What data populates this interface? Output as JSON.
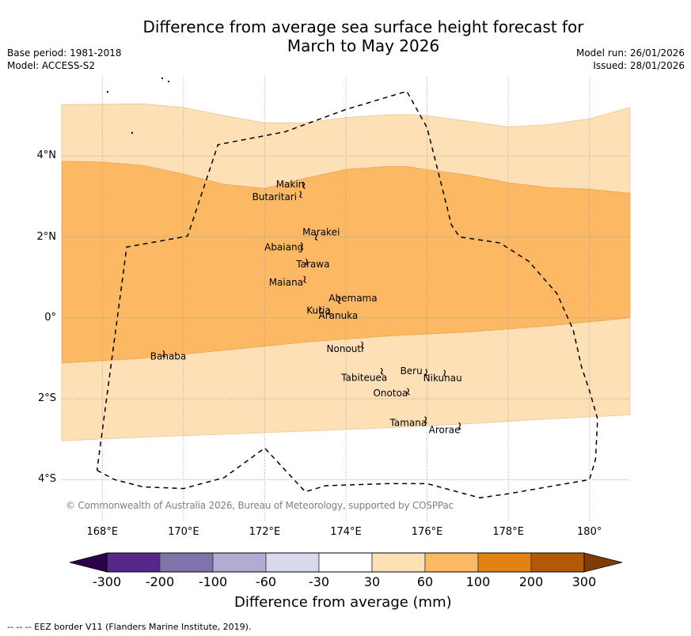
{
  "title_line1": "Difference from average sea surface height forecast for",
  "title_line2": "March to May 2026",
  "meta_left": {
    "base_period": "Base period: 1981-2018",
    "model": "Model: ACCESS-S2"
  },
  "meta_right": {
    "model_run": "Model run: 26/01/2026",
    "issued": "Issued: 28/01/2026"
  },
  "axes": {
    "lat_ticks": [
      {
        "value": 4,
        "label": "4°N"
      },
      {
        "value": 2,
        "label": "2°N"
      },
      {
        "value": 0,
        "label": "0°"
      },
      {
        "value": -2,
        "label": "2°S"
      },
      {
        "value": -4,
        "label": "4°S"
      }
    ],
    "lon_ticks": [
      {
        "value": 168,
        "label": "168°E"
      },
      {
        "value": 170,
        "label": "170°E"
      },
      {
        "value": 172,
        "label": "172°E"
      },
      {
        "value": 174,
        "label": "174°E"
      },
      {
        "value": 176,
        "label": "176°E"
      },
      {
        "value": 178,
        "label": "178°E"
      },
      {
        "value": 180,
        "label": "180°"
      }
    ],
    "lon_range": [
      167.0,
      181.0
    ],
    "lat_range": [
      -5.05,
      5.98
    ]
  },
  "copyright": "© Commonwealth of Australia 2026, Bureau of Meteorology, supported by COSPPac",
  "colorbar": {
    "label": "Difference from average (mm)",
    "ticks": [
      "-300",
      "-200",
      "-100",
      "-60",
      "-30",
      "30",
      "60",
      "100",
      "200",
      "300"
    ],
    "low_extend_color": "#2d004b",
    "high_extend_color": "#7f3b08",
    "bins": [
      {
        "range": "-300 to -200",
        "color": "#542788"
      },
      {
        "range": "-200 to -100",
        "color": "#8073ac"
      },
      {
        "range": "-100 to -60",
        "color": "#b2abd2"
      },
      {
        "range": "-60 to -30",
        "color": "#d8daeb"
      },
      {
        "range": "-30 to 30",
        "color": "#ffffff"
      },
      {
        "range": "30 to 60",
        "color": "#fee0b6"
      },
      {
        "range": "60 to 100",
        "color": "#fdb863"
      },
      {
        "range": "100 to 200",
        "color": "#e08214"
      },
      {
        "range": "200 to 300",
        "color": "#b35806"
      }
    ]
  },
  "chart_data": {
    "type": "heatmap",
    "title": "Difference from average sea surface height forecast for March to May 2026",
    "units": "mm",
    "contour_bands": [
      {
        "name": "30-60 mm",
        "color": "#fee0b6",
        "upper_boundary": [
          [
            167.0,
            5.27
          ],
          [
            168.0,
            5.28
          ],
          [
            169.0,
            5.29
          ],
          [
            170.0,
            5.2
          ],
          [
            171.0,
            5.0
          ],
          [
            172.0,
            4.82
          ],
          [
            173.0,
            4.82
          ],
          [
            174.0,
            4.95
          ],
          [
            175.0,
            5.02
          ],
          [
            175.5,
            5.03
          ],
          [
            176.0,
            5.0
          ],
          [
            177.0,
            4.86
          ],
          [
            178.0,
            4.72
          ],
          [
            179.0,
            4.78
          ],
          [
            180.0,
            4.92
          ],
          [
            181.0,
            5.2
          ]
        ],
        "lower_boundary": [
          [
            167.0,
            -3.04
          ],
          [
            169.0,
            -2.95
          ],
          [
            171.0,
            -2.88
          ],
          [
            173.0,
            -2.8
          ],
          [
            175.0,
            -2.72
          ],
          [
            177.0,
            -2.62
          ],
          [
            179.0,
            -2.5
          ],
          [
            181.0,
            -2.4
          ]
        ]
      },
      {
        "name": "60-100 mm",
        "color": "#fdb863",
        "upper_boundary": [
          [
            167.0,
            3.87
          ],
          [
            168.0,
            3.85
          ],
          [
            169.0,
            3.77
          ],
          [
            170.0,
            3.55
          ],
          [
            171.0,
            3.3
          ],
          [
            172.0,
            3.2
          ],
          [
            173.0,
            3.45
          ],
          [
            174.0,
            3.67
          ],
          [
            175.0,
            3.74
          ],
          [
            175.5,
            3.74
          ],
          [
            176.0,
            3.66
          ],
          [
            177.0,
            3.53
          ],
          [
            178.0,
            3.34
          ],
          [
            179.0,
            3.22
          ],
          [
            180.0,
            3.18
          ],
          [
            181.0,
            3.08
          ]
        ],
        "lower_boundary": [
          [
            167.0,
            -1.12
          ],
          [
            169.0,
            -1.0
          ],
          [
            171.0,
            -0.8
          ],
          [
            173.0,
            -0.6
          ],
          [
            175.0,
            -0.45
          ],
          [
            177.0,
            -0.35
          ],
          [
            179.0,
            -0.2
          ],
          [
            181.0,
            0.0
          ]
        ]
      }
    ],
    "eez_border": {
      "label": "EEZ border V11 (Flanders Marine Institute, 2019)",
      "path": [
        [
          167.87,
          -3.77
        ],
        [
          168.3,
          -4.0
        ],
        [
          169.0,
          -4.18
        ],
        [
          170.0,
          -4.22
        ],
        [
          171.0,
          -3.95
        ],
        [
          172.0,
          -3.22
        ],
        [
          173.0,
          -4.3
        ],
        [
          173.5,
          -4.15
        ],
        [
          175.0,
          -4.1
        ],
        [
          176.0,
          -4.1
        ],
        [
          177.3,
          -4.45
        ],
        [
          178.0,
          -4.35
        ],
        [
          180.0,
          -4.0
        ],
        [
          180.15,
          -3.5
        ],
        [
          180.2,
          -2.5
        ],
        [
          180.0,
          -1.8
        ],
        [
          179.8,
          -1.2
        ],
        [
          179.6,
          -0.3
        ],
        [
          179.2,
          0.6
        ],
        [
          178.5,
          1.4
        ],
        [
          177.8,
          1.85
        ],
        [
          176.8,
          2.0
        ],
        [
          176.6,
          2.3
        ],
        [
          176.3,
          3.5
        ],
        [
          176.0,
          4.7
        ],
        [
          175.5,
          5.6
        ],
        [
          174.0,
          5.15
        ],
        [
          172.5,
          4.6
        ],
        [
          170.85,
          4.28
        ],
        [
          170.1,
          2.02
        ],
        [
          168.6,
          1.75
        ],
        [
          167.87,
          -3.77
        ]
      ]
    },
    "islands": [
      {
        "name": "Makin",
        "lon": 172.98,
        "lat": 3.3
      },
      {
        "name": "Butaritari",
        "lon": 172.9,
        "lat": 3.07
      },
      {
        "name": "Marakei",
        "lon": 173.28,
        "lat": 2.02
      },
      {
        "name": "Abaiang",
        "lon": 172.93,
        "lat": 1.8
      },
      {
        "name": "Tarawa",
        "lon": 173.05,
        "lat": 1.4
      },
      {
        "name": "Maiana",
        "lon": 173.0,
        "lat": 0.97
      },
      {
        "name": "Abemama",
        "lon": 173.85,
        "lat": 0.45
      },
      {
        "name": "Kuria",
        "lon": 173.38,
        "lat": 0.22
      },
      {
        "name": "Aranuka",
        "lon": 173.6,
        "lat": 0.17
      },
      {
        "name": "Nonouti",
        "lon": 174.42,
        "lat": -0.65
      },
      {
        "name": "Tabiteuea",
        "lon": 174.9,
        "lat": -1.3
      },
      {
        "name": "Beru",
        "lon": 176.0,
        "lat": -1.33
      },
      {
        "name": "Nikunau",
        "lon": 176.45,
        "lat": -1.35
      },
      {
        "name": "Onotoa",
        "lon": 175.55,
        "lat": -1.8
      },
      {
        "name": "Tamana",
        "lon": 175.98,
        "lat": -2.5
      },
      {
        "name": "Arorae",
        "lon": 176.82,
        "lat": -2.65
      },
      {
        "name": "Banaba",
        "lon": 169.53,
        "lat": -0.87
      }
    ]
  },
  "footnote": "--  --  -- EEZ border V11 (Flanders Marine Institute, 2019)."
}
